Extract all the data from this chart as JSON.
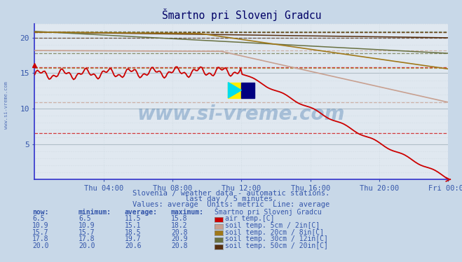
{
  "title": "Šmartno pri Slovenj Gradcu",
  "subtitle1": "Slovenia / weather data - automatic stations.",
  "subtitle2": "last day / 5 minutes.",
  "subtitle3": "Values: average  Units: metric  Line: average",
  "bg_color": "#c8d8e8",
  "plot_bg_color": "#e0e8f0",
  "x_labels": [
    "Thu 04:00",
    "Thu 08:00",
    "Thu 12:00",
    "Thu 16:00",
    "Thu 20:00",
    "Fri 00:00"
  ],
  "x_ticks_frac": [
    0.167,
    0.333,
    0.5,
    0.667,
    0.833,
    1.0
  ],
  "ylim": [
    0,
    22
  ],
  "yticks": [
    5,
    10,
    15,
    20
  ],
  "air_color": "#cc0000",
  "soil5_color": "#c8a090",
  "soil20_color": "#a07818",
  "soil30_color": "#687040",
  "soil50_color": "#583010",
  "dashed_air_max": 15.8,
  "dashed_air_min": 6.5,
  "dashed_soil5_max": 18.2,
  "dashed_soil5_min": 10.9,
  "dashed_soil20_max": 20.8,
  "dashed_soil20_min": 15.7,
  "dashed_soil30_max": 20.9,
  "dashed_soil30_min": 17.8,
  "dashed_soil50_max": 20.8,
  "dashed_soil50_min": 20.0,
  "n_points": 288,
  "logo_text": "www.si-vreme.com",
  "watermark_color": "#2060a0",
  "table_rows": [
    {
      "now": "6.5",
      "min": "6.5",
      "avg": "11.5",
      "max": "15.8",
      "label": "air temp.[C]",
      "color": "#cc0000"
    },
    {
      "now": "10.9",
      "min": "10.9",
      "avg": "15.1",
      "max": "18.2",
      "label": "soil temp. 5cm / 2in[C]",
      "color": "#c8a090"
    },
    {
      "now": "15.7",
      "min": "15.7",
      "avg": "18.5",
      "max": "20.8",
      "label": "soil temp. 20cm / 8in[C]",
      "color": "#a07818"
    },
    {
      "now": "17.8",
      "min": "17.8",
      "avg": "19.7",
      "max": "20.9",
      "label": "soil temp. 30cm / 12in[C]",
      "color": "#687040"
    },
    {
      "now": "20.0",
      "min": "20.0",
      "avg": "20.6",
      "max": "20.8",
      "label": "soil temp. 50cm / 20in[C]",
      "color": "#583010"
    }
  ]
}
